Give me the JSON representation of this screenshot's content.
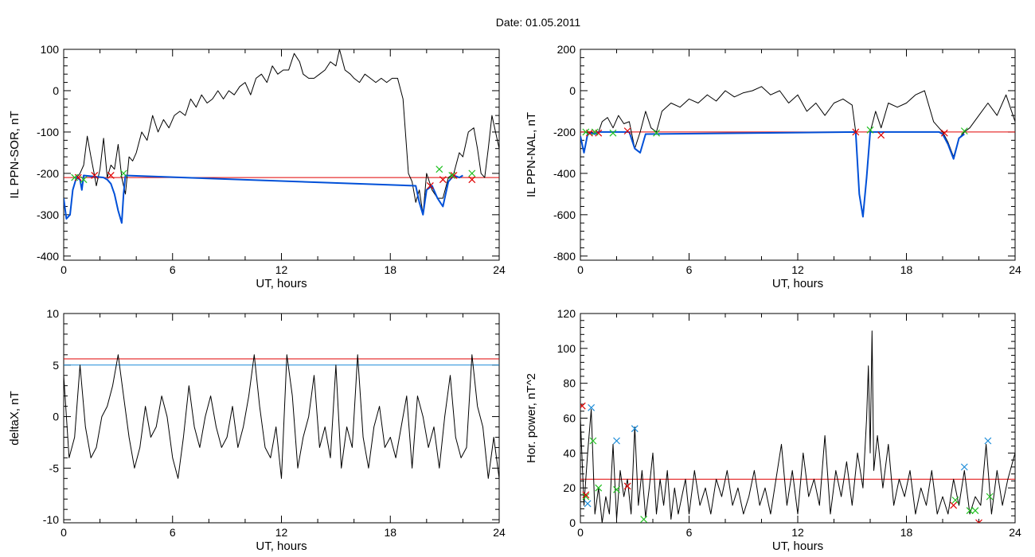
{
  "figure": {
    "title": "Date:  01.05.2011"
  },
  "chart_data": [
    {
      "id": "p1",
      "type": "line",
      "xlabel": "UT, hours",
      "ylabel": "IL PPN-SOR, nT",
      "xlim": [
        0,
        24
      ],
      "ylim": [
        -410,
        100
      ],
      "xticks": [
        0,
        6,
        12,
        18,
        24
      ],
      "yticks": [
        -400,
        -300,
        -200,
        -100,
        0,
        100
      ],
      "series": [
        {
          "color": "#000000",
          "width": 1,
          "x": [
            0,
            0.15,
            0.35,
            0.5,
            0.7,
            0.9,
            1.1,
            1.3,
            1.5,
            1.7,
            1.8,
            2.0,
            2.2,
            2.4,
            2.6,
            2.8,
            3.0,
            3.2,
            3.4,
            3.6,
            3.8,
            4.0,
            4.3,
            4.6,
            4.9,
            5.2,
            5.5,
            5.8,
            6.1,
            6.4,
            6.7,
            7.0,
            7.3,
            7.6,
            7.9,
            8.2,
            8.5,
            8.8,
            9.1,
            9.4,
            9.7,
            10.0,
            10.3,
            10.6,
            10.9,
            11.2,
            11.5,
            11.8,
            12.1,
            12.4,
            12.7,
            13.0,
            13.2,
            13.5,
            13.8,
            14.1,
            14.4,
            14.7,
            15.0,
            15.2,
            15.5,
            15.8,
            16.0,
            16.3,
            16.6,
            16.9,
            17.2,
            17.5,
            17.8,
            18.1,
            18.4,
            18.7,
            19.0,
            19.2,
            19.4,
            19.6,
            19.8,
            20.0,
            20.3,
            20.6,
            20.9,
            21.2,
            21.5,
            21.8,
            22.0,
            22.3,
            22.6,
            22.8,
            23.0,
            23.2,
            23.4,
            23.6,
            23.8,
            24.0
          ],
          "y": [
            -260,
            -310,
            -300,
            -240,
            -210,
            -200,
            -180,
            -110,
            -160,
            -205,
            -230,
            -190,
            -115,
            -210,
            -180,
            -190,
            -130,
            -210,
            -250,
            -160,
            -170,
            -150,
            -100,
            -120,
            -60,
            -100,
            -70,
            -90,
            -60,
            -50,
            -60,
            -20,
            -40,
            -10,
            -30,
            -20,
            0,
            -20,
            0,
            -10,
            10,
            20,
            -10,
            30,
            40,
            20,
            60,
            40,
            50,
            50,
            90,
            70,
            40,
            30,
            30,
            40,
            50,
            70,
            60,
            100,
            50,
            40,
            30,
            20,
            40,
            30,
            20,
            30,
            20,
            30,
            30,
            -20,
            -200,
            -220,
            -270,
            -240,
            -300,
            -200,
            -240,
            -260,
            -260,
            -210,
            -200,
            -150,
            -160,
            -100,
            -90,
            -140,
            -200,
            -210,
            -140,
            -60,
            -100,
            -140
          ]
        },
        {
          "color": "#0050d8",
          "width": 2,
          "x": [
            0,
            0.15,
            0.35,
            0.5,
            0.7,
            0.9,
            1.0,
            1.1,
            2.2,
            2.4,
            2.6,
            2.8,
            3.0,
            3.2,
            3.3,
            3.4,
            19.4,
            19.6,
            19.8,
            20.0,
            20.3,
            20.6,
            20.9,
            21.2,
            21.5,
            21.8,
            22.0
          ],
          "y": [
            -260,
            -310,
            -300,
            -240,
            -210,
            -215,
            -240,
            -205,
            -210,
            -215,
            -225,
            -250,
            -290,
            -320,
            -250,
            -205,
            -230,
            -270,
            -300,
            -240,
            -230,
            -260,
            -280,
            -220,
            -205,
            -210,
            -205
          ]
        }
      ],
      "hlines": [
        {
          "y": -210,
          "color": "#e00000"
        }
      ],
      "markers": [
        {
          "color": "#e00000",
          "x": [
            0.8,
            1.7,
            2.6,
            20.2,
            20.9,
            21.5,
            22.5
          ],
          "y": [
            -210,
            -205,
            -205,
            -230,
            -215,
            -205,
            -215
          ]
        },
        {
          "color": "#20c020",
          "x": [
            0.6,
            1.1,
            3.3,
            20.7,
            21.4,
            22.5
          ],
          "y": [
            -210,
            -215,
            -200,
            -190,
            -205,
            -200
          ]
        }
      ]
    },
    {
      "id": "p2",
      "type": "line",
      "xlabel": "UT, hours",
      "ylabel": "IL PPN-NAL, nT",
      "xlim": [
        0,
        24
      ],
      "ylim": [
        -820,
        200
      ],
      "xticks": [
        0,
        6,
        12,
        18,
        24
      ],
      "yticks": [
        -800,
        -600,
        -400,
        -200,
        0,
        200
      ],
      "series": [
        {
          "color": "#000000",
          "width": 1,
          "x": [
            0,
            0.2,
            0.4,
            0.6,
            0.8,
            1.0,
            1.2,
            1.5,
            1.8,
            2.1,
            2.4,
            2.7,
            3.0,
            3.3,
            3.6,
            3.9,
            4.2,
            4.5,
            5.0,
            5.5,
            6.0,
            6.5,
            7.0,
            7.5,
            8.0,
            8.5,
            9.0,
            9.5,
            10.0,
            10.5,
            11.0,
            11.5,
            12.0,
            12.5,
            13.0,
            13.5,
            14.0,
            14.5,
            15.0,
            15.2,
            15.4,
            15.6,
            15.8,
            16.0,
            16.3,
            16.6,
            17.0,
            17.5,
            18.0,
            18.5,
            19.0,
            19.5,
            20.0,
            20.3,
            20.6,
            20.9,
            21.2,
            21.5,
            22.0,
            22.5,
            23.0,
            23.5,
            24.0
          ],
          "y": [
            -220,
            -300,
            -200,
            -200,
            -210,
            -200,
            -150,
            -130,
            -180,
            -120,
            -160,
            -150,
            -280,
            -200,
            -100,
            -180,
            -200,
            -100,
            -60,
            -80,
            -40,
            -60,
            -20,
            -50,
            0,
            -30,
            -10,
            0,
            20,
            -20,
            0,
            -60,
            -20,
            -100,
            -60,
            -120,
            -60,
            -40,
            -70,
            -200,
            -500,
            -600,
            -420,
            -200,
            -100,
            -180,
            -60,
            -80,
            -60,
            -20,
            0,
            -150,
            -200,
            -250,
            -320,
            -230,
            -200,
            -180,
            -120,
            -60,
            -120,
            -20,
            -150
          ]
        },
        {
          "color": "#0050d8",
          "width": 2,
          "x": [
            0,
            0.2,
            0.4,
            0.6,
            0.8,
            1.0,
            2.7,
            3.0,
            3.3,
            3.6,
            15.2,
            15.4,
            15.6,
            15.8,
            16.0,
            19.8,
            20.0,
            20.3,
            20.6,
            20.9,
            21.2
          ],
          "y": [
            -220,
            -300,
            -210,
            -205,
            -210,
            -200,
            -200,
            -280,
            -300,
            -210,
            -200,
            -500,
            -610,
            -420,
            -200,
            -200,
            -210,
            -260,
            -330,
            -230,
            -210
          ]
        }
      ],
      "hlines": [
        {
          "y": -200,
          "color": "#e00000"
        }
      ],
      "markers": [
        {
          "color": "#e00000",
          "x": [
            0.5,
            1.0,
            2.6,
            15.2,
            16.6,
            20.1
          ],
          "y": [
            -205,
            -205,
            -195,
            -200,
            -215,
            -205
          ]
        },
        {
          "color": "#20c020",
          "x": [
            0.3,
            0.8,
            1.8,
            4.2,
            16.0,
            21.2
          ],
          "y": [
            -200,
            -200,
            -205,
            -205,
            -190,
            -195
          ]
        }
      ]
    },
    {
      "id": "p3",
      "type": "line",
      "xlabel": "UT, hours",
      "ylabel": "deltaX, nT",
      "xlim": [
        0,
        24
      ],
      "ylim": [
        -10.3,
        10
      ],
      "xticks": [
        0,
        6,
        12,
        18,
        24
      ],
      "yticks": [
        -10,
        -5,
        0,
        5,
        10
      ],
      "series": [
        {
          "color": "#000000",
          "width": 1,
          "x": [
            0,
            0.3,
            0.6,
            0.9,
            1.2,
            1.5,
            1.8,
            2.1,
            2.4,
            2.7,
            3.0,
            3.3,
            3.6,
            3.9,
            4.2,
            4.5,
            4.8,
            5.1,
            5.4,
            5.7,
            6.0,
            6.3,
            6.6,
            6.9,
            7.2,
            7.5,
            7.8,
            8.1,
            8.4,
            8.7,
            9.0,
            9.3,
            9.6,
            9.9,
            10.2,
            10.5,
            10.8,
            11.1,
            11.4,
            11.7,
            12.0,
            12.3,
            12.6,
            12.9,
            13.2,
            13.5,
            13.8,
            14.1,
            14.4,
            14.7,
            15.0,
            15.3,
            15.6,
            15.9,
            16.2,
            16.5,
            16.8,
            17.1,
            17.4,
            17.7,
            18.0,
            18.3,
            18.6,
            18.9,
            19.2,
            19.5,
            19.8,
            20.1,
            20.4,
            20.7,
            21.0,
            21.3,
            21.6,
            21.9,
            22.2,
            22.5,
            22.8,
            23.1,
            23.4,
            23.7,
            24.0
          ],
          "y": [
            4,
            -4,
            -2,
            5,
            -1,
            -4,
            -3,
            0,
            1,
            3,
            6,
            2,
            -2,
            -5,
            -3,
            1,
            -2,
            -1,
            2,
            0,
            -4,
            -6,
            -2,
            3,
            -1,
            -3,
            0,
            2,
            -1,
            -3,
            -2,
            1,
            -3,
            -1,
            2,
            6,
            1,
            -3,
            -4,
            -1,
            -6,
            6,
            2,
            -5,
            -2,
            0,
            4,
            -3,
            -1,
            -4,
            5,
            -5,
            -1,
            -3,
            6,
            -2,
            -5,
            -1,
            1,
            -3,
            -2,
            -4,
            -1,
            2,
            -5,
            2,
            0,
            -3,
            -1,
            -5,
            0,
            4,
            -2,
            -4,
            -3,
            6,
            1,
            -1,
            -6,
            -2,
            -6
          ]
        }
      ],
      "hlines": [
        {
          "y": 5.6,
          "color": "#e00000"
        },
        {
          "y": 5.0,
          "color": "#1c8cd8"
        }
      ],
      "markers": []
    },
    {
      "id": "p4",
      "type": "line",
      "xlabel": "UT, hours",
      "ylabel": "Hor. power, nT^2",
      "xlim": [
        0,
        24
      ],
      "ylim": [
        0,
        120
      ],
      "xticks": [
        0,
        6,
        12,
        18,
        24
      ],
      "yticks": [
        0,
        20,
        40,
        60,
        80,
        100,
        120
      ],
      "series": [
        {
          "color": "#000000",
          "width": 1,
          "x": [
            0,
            0.2,
            0.4,
            0.6,
            0.8,
            1.0,
            1.2,
            1.4,
            1.6,
            1.8,
            2.0,
            2.2,
            2.4,
            2.6,
            2.8,
            3.0,
            3.2,
            3.4,
            3.6,
            3.8,
            4.0,
            4.2,
            4.4,
            4.6,
            4.8,
            5.0,
            5.2,
            5.4,
            5.6,
            5.8,
            6.0,
            6.3,
            6.6,
            6.9,
            7.2,
            7.5,
            7.8,
            8.1,
            8.4,
            8.7,
            9.0,
            9.3,
            9.6,
            9.9,
            10.2,
            10.5,
            10.8,
            11.1,
            11.4,
            11.7,
            12.0,
            12.3,
            12.6,
            12.9,
            13.2,
            13.5,
            13.8,
            14.1,
            14.4,
            14.7,
            15.0,
            15.3,
            15.6,
            15.8,
            15.9,
            16.0,
            16.1,
            16.2,
            16.4,
            16.7,
            17.0,
            17.3,
            17.6,
            17.9,
            18.2,
            18.5,
            18.8,
            19.1,
            19.4,
            19.7,
            20.0,
            20.3,
            20.6,
            20.9,
            21.2,
            21.5,
            21.8,
            22.1,
            22.4,
            22.7,
            23.0,
            23.3,
            23.6,
            24.0
          ],
          "y": [
            60,
            10,
            40,
            65,
            5,
            20,
            0,
            15,
            5,
            45,
            2,
            30,
            15,
            25,
            5,
            55,
            10,
            30,
            3,
            20,
            40,
            5,
            25,
            10,
            30,
            2,
            20,
            5,
            15,
            25,
            5,
            30,
            10,
            20,
            5,
            25,
            15,
            30,
            10,
            20,
            5,
            15,
            30,
            10,
            20,
            5,
            25,
            45,
            10,
            30,
            5,
            40,
            15,
            25,
            10,
            50,
            5,
            30,
            15,
            35,
            10,
            40,
            20,
            60,
            90,
            40,
            110,
            30,
            50,
            20,
            45,
            10,
            25,
            15,
            30,
            5,
            20,
            10,
            30,
            5,
            15,
            5,
            25,
            10,
            30,
            5,
            15,
            10,
            45,
            5,
            30,
            10,
            25,
            40
          ]
        }
      ],
      "hlines": [
        {
          "y": 25,
          "color": "#e00000"
        }
      ],
      "markers": [
        {
          "color": "#1c8cd8",
          "x": [
            0.6,
            2.0,
            3.0,
            21.2,
            22.5,
            0.4
          ],
          "y": [
            66,
            47,
            54,
            32,
            47,
            11
          ]
        },
        {
          "color": "#20c020",
          "x": [
            0.7,
            1.0,
            2.0,
            3.5,
            20.7,
            21.5,
            21.8,
            22.6,
            0.3
          ],
          "y": [
            47,
            20,
            19,
            2,
            13,
            7,
            7,
            15,
            15
          ]
        },
        {
          "color": "#e00000",
          "x": [
            0.3,
            2.6,
            20.6,
            22.0,
            0.1
          ],
          "y": [
            16,
            21,
            10,
            0,
            67
          ]
        }
      ]
    }
  ]
}
